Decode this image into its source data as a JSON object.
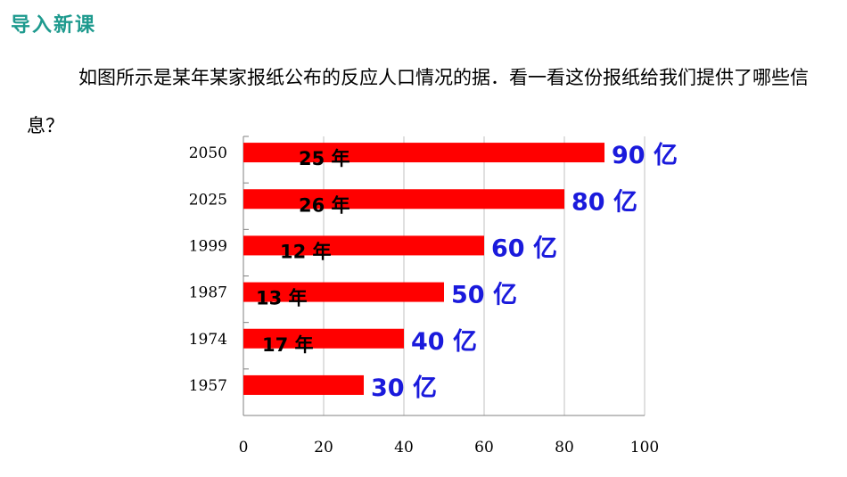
{
  "header": {
    "title": "导入新课"
  },
  "intro": {
    "text": "如图所示是某年某家报纸公布的反应人口情况的据．看一看这份报纸给我们提供了哪些信息？"
  },
  "colors": {
    "bar": "#ff0000",
    "value_label": "#1a1adc",
    "header": "#1e9a8e",
    "grid": "#c0c0c0"
  },
  "chart_data": {
    "type": "bar",
    "orientation": "horizontal",
    "categories": [
      "2050",
      "2025",
      "1999",
      "1987",
      "1974",
      "1957"
    ],
    "values": [
      90,
      80,
      60,
      50,
      40,
      30
    ],
    "value_labels": [
      "90 亿",
      "80 亿",
      "60 亿",
      "50 亿",
      "40 亿",
      "30 亿"
    ],
    "bar_annotations": [
      "25 年",
      "26 年",
      "12 年",
      "13 年",
      "17 年",
      ""
    ],
    "x_ticks": [
      "0",
      "20",
      "40",
      "60",
      "80",
      "100"
    ],
    "xlim": [
      0,
      100
    ],
    "grid": true
  }
}
